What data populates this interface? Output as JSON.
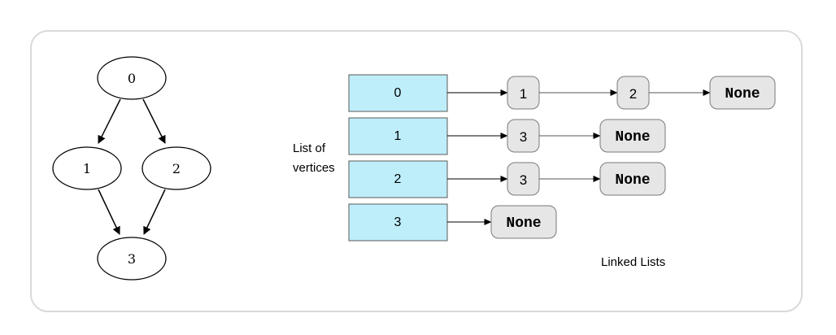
{
  "graph": {
    "nodes": [
      "0",
      "1",
      "2",
      "3"
    ],
    "edges": [
      [
        "0",
        "1"
      ],
      [
        "0",
        "2"
      ],
      [
        "1",
        "3"
      ],
      [
        "2",
        "3"
      ]
    ]
  },
  "adjacency": {
    "vertices_label_line1": "List of",
    "vertices_label_line2": "vertices",
    "linked_lists_label": "Linked Lists",
    "rows": [
      {
        "vertex": "0",
        "list": [
          "1",
          "2"
        ]
      },
      {
        "vertex": "1",
        "list": [
          "3"
        ]
      },
      {
        "vertex": "2",
        "list": [
          "3"
        ]
      },
      {
        "vertex": "3",
        "list": []
      }
    ],
    "none_label": "None"
  },
  "colors": {
    "vertex_cell": "#bfeefb",
    "list_node": "#e6e6e6",
    "frame_border": "#d9d9d9"
  }
}
